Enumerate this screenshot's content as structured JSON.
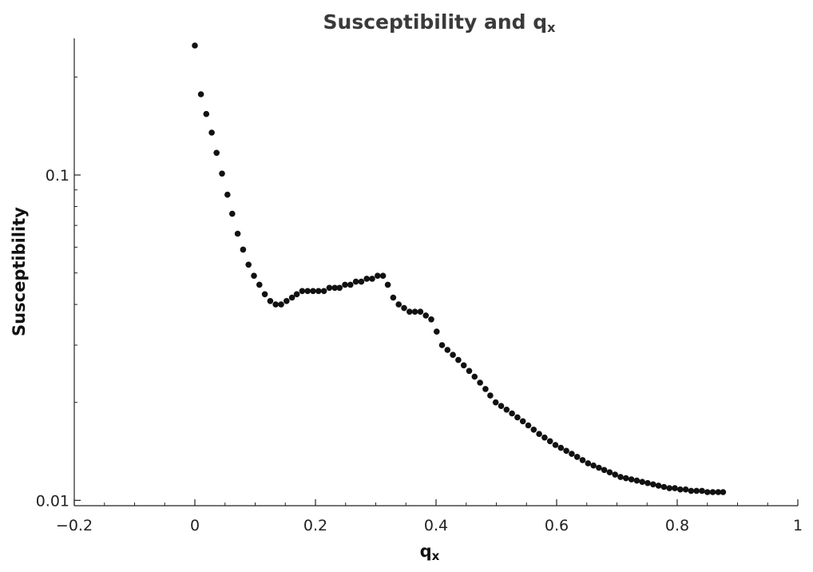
{
  "chart_data": {
    "type": "scatter",
    "title": "Susceptibility and q",
    "title_subscript": "x",
    "xlabel": "q",
    "xlabel_subscript": "x",
    "ylabel": "Susceptibility",
    "xlim": [
      -0.2,
      1.0
    ],
    "ylim": [
      0.00963,
      0.263
    ],
    "yscale": "log",
    "grid": false,
    "legend": "none",
    "marker_color": "#111111",
    "x_ticks": [
      -0.2,
      0,
      0.2,
      0.4,
      0.6,
      0.8,
      1
    ],
    "x_tick_labels": [
      "−0.2",
      "0",
      "0.2",
      "0.4",
      "0.6",
      "0.8",
      "1"
    ],
    "y_ticks": [
      0.01,
      0.1
    ],
    "y_tick_labels": [
      "0.01",
      "0.1"
    ],
    "series": [
      {
        "x": [
          0.0,
          0.01,
          0.019,
          0.028,
          0.036,
          0.045,
          0.054,
          0.062,
          0.071,
          0.08,
          0.089,
          0.098,
          0.107,
          0.116,
          0.125,
          0.134,
          0.143,
          0.152,
          0.161,
          0.169,
          0.178,
          0.187,
          0.196,
          0.205,
          0.214,
          0.223,
          0.232,
          0.24,
          0.249,
          0.258,
          0.267,
          0.276,
          0.285,
          0.294,
          0.303,
          0.312,
          0.32,
          0.329,
          0.338,
          0.347,
          0.356,
          0.365,
          0.374,
          0.383,
          0.392,
          0.401,
          0.41,
          0.419,
          0.428,
          0.437,
          0.446,
          0.455,
          0.464,
          0.473,
          0.482,
          0.49,
          0.499,
          0.508,
          0.517,
          0.526,
          0.535,
          0.544,
          0.553,
          0.562,
          0.571,
          0.58,
          0.589,
          0.598,
          0.607,
          0.616,
          0.625,
          0.634,
          0.643,
          0.652,
          0.661,
          0.67,
          0.679,
          0.688,
          0.697,
          0.706,
          0.715,
          0.724,
          0.733,
          0.742,
          0.751,
          0.76,
          0.769,
          0.778,
          0.787,
          0.796,
          0.805,
          0.814,
          0.823,
          0.832,
          0.841,
          0.85,
          0.859,
          0.868,
          0.876
        ],
        "y": [
          0.25,
          0.177,
          0.154,
          0.135,
          0.117,
          0.101,
          0.087,
          0.076,
          0.066,
          0.059,
          0.053,
          0.049,
          0.046,
          0.043,
          0.041,
          0.04,
          0.04,
          0.041,
          0.042,
          0.043,
          0.044,
          0.044,
          0.044,
          0.044,
          0.044,
          0.045,
          0.045,
          0.045,
          0.046,
          0.046,
          0.047,
          0.047,
          0.048,
          0.048,
          0.049,
          0.049,
          0.046,
          0.042,
          0.04,
          0.039,
          0.038,
          0.038,
          0.038,
          0.037,
          0.036,
          0.033,
          0.03,
          0.029,
          0.028,
          0.027,
          0.026,
          0.025,
          0.024,
          0.023,
          0.022,
          0.021,
          0.02,
          0.0195,
          0.019,
          0.0185,
          0.018,
          0.0175,
          0.017,
          0.0165,
          0.016,
          0.0156,
          0.0152,
          0.0148,
          0.0145,
          0.0142,
          0.0139,
          0.0136,
          0.0133,
          0.013,
          0.0128,
          0.0126,
          0.0124,
          0.0122,
          0.012,
          0.0118,
          0.0117,
          0.0116,
          0.0115,
          0.0114,
          0.0113,
          0.0112,
          0.0111,
          0.011,
          0.0109,
          0.0109,
          0.0108,
          0.0108,
          0.0107,
          0.0107,
          0.0107,
          0.0106,
          0.0106,
          0.0106,
          0.0106
        ]
      }
    ]
  }
}
